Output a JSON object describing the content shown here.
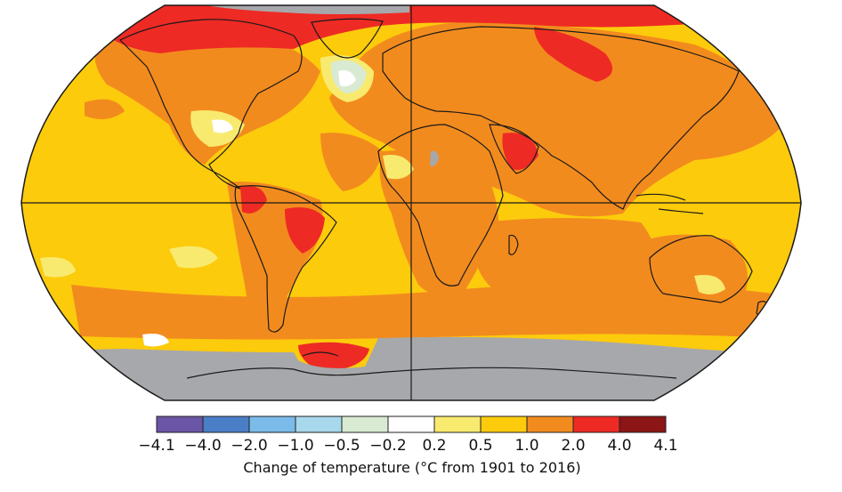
{
  "legend": {
    "title": "Change of temperature (°C from 1901 to 2016)",
    "swatch_colors": [
      "#6a55a6",
      "#4a7fc7",
      "#7bbbea",
      "#a8d8ec",
      "#d9ead3",
      "#ffffff",
      "#f8ea6e",
      "#fccb0c",
      "#f28b1e",
      "#ee2a24",
      "#8c1515"
    ],
    "tick_labels": [
      "−4.1",
      "−4.0",
      "−2.0",
      "−1.0",
      "−0.5",
      "−0.2",
      "0.2",
      "0.5",
      "1.0",
      "2.0",
      "4.0",
      "4.1"
    ]
  },
  "map": {
    "projection": "Robinson",
    "no_data_color": "#a7a8ab",
    "ocean_color": "#fccb0c",
    "warm_color": "#f28b1e",
    "hot_color": "#ee2a24",
    "mild_color": "#f8ea6e",
    "cool_color": "#d9ead3",
    "coastline_color": "#1a1a1a",
    "graticule_color": "#1a1a1a"
  }
}
